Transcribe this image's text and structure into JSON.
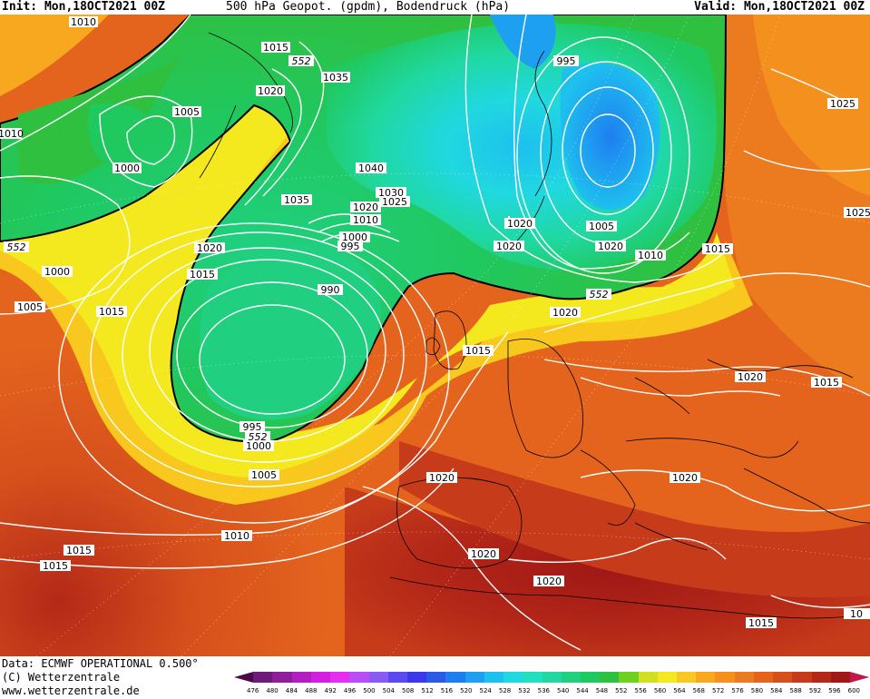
{
  "header": {
    "init": "Init: Mon,18OCT2021 00Z",
    "title": "500 hPa Geopot. (gpdm), Bodendruck (hPa)",
    "valid": "Valid: Mon,18OCT2021 00Z"
  },
  "footer": {
    "data_source": "Data: ECMWF OPERATIONAL 0.500°",
    "copyright": "(C) Wetterzentrale",
    "url": "www.wetterzentrale.de"
  },
  "colorbar": {
    "ticks": [
      "476",
      "480",
      "484",
      "488",
      "492",
      "496",
      "500",
      "504",
      "508",
      "512",
      "516",
      "520",
      "524",
      "528",
      "532",
      "536",
      "540",
      "544",
      "548",
      "552",
      "556",
      "560",
      "564",
      "568",
      "572",
      "576",
      "580",
      "584",
      "588",
      "592",
      "596",
      "600"
    ],
    "colors": [
      "#4a0a4a",
      "#6e1a78",
      "#8e1f9a",
      "#b11fc0",
      "#d21fe0",
      "#e62ef0",
      "#b84ef5",
      "#8a5af5",
      "#5a4af0",
      "#3a3ae8",
      "#2a5ae6",
      "#1e7ef0",
      "#1ea0f0",
      "#1ec0ee",
      "#20d8e0",
      "#20e0c0",
      "#20d8a0",
      "#20d080",
      "#20c860",
      "#30c040",
      "#70d020",
      "#d0e020",
      "#f4e81e",
      "#f8c81e",
      "#f8a81e",
      "#f4901e",
      "#ec7a1e",
      "#e4641e",
      "#d6501c",
      "#c63c1a",
      "#b42818",
      "#a01816",
      "#c01848"
    ],
    "fill_notes": "colour fill encodes 500 hPa geopotential (gpdm); white contours = surface pressure (hPa); black contour = 552 gpdm"
  },
  "map": {
    "surface_pressure_labels": [
      "1010",
      "1015",
      "1020",
      "1005",
      "1000",
      "1010",
      "1035",
      "995",
      "1025",
      "1020",
      "1040",
      "1035",
      "1030",
      "1025",
      "1020",
      "1010",
      "1000",
      "995",
      "990",
      "1015",
      "1020",
      "1015",
      "1000",
      "1005",
      "1010",
      "1015",
      "1020",
      "1020",
      "1015",
      "1020",
      "1015",
      "1020",
      "1020",
      "1020",
      "995",
      "1000",
      "1005",
      "1010",
      "1015",
      "1015",
      "1020",
      "1020",
      "1015",
      "1025",
      "10",
      "1005",
      "1010"
    ],
    "geopotential_552_labels": [
      "552",
      "552",
      "552",
      "552"
    ]
  }
}
